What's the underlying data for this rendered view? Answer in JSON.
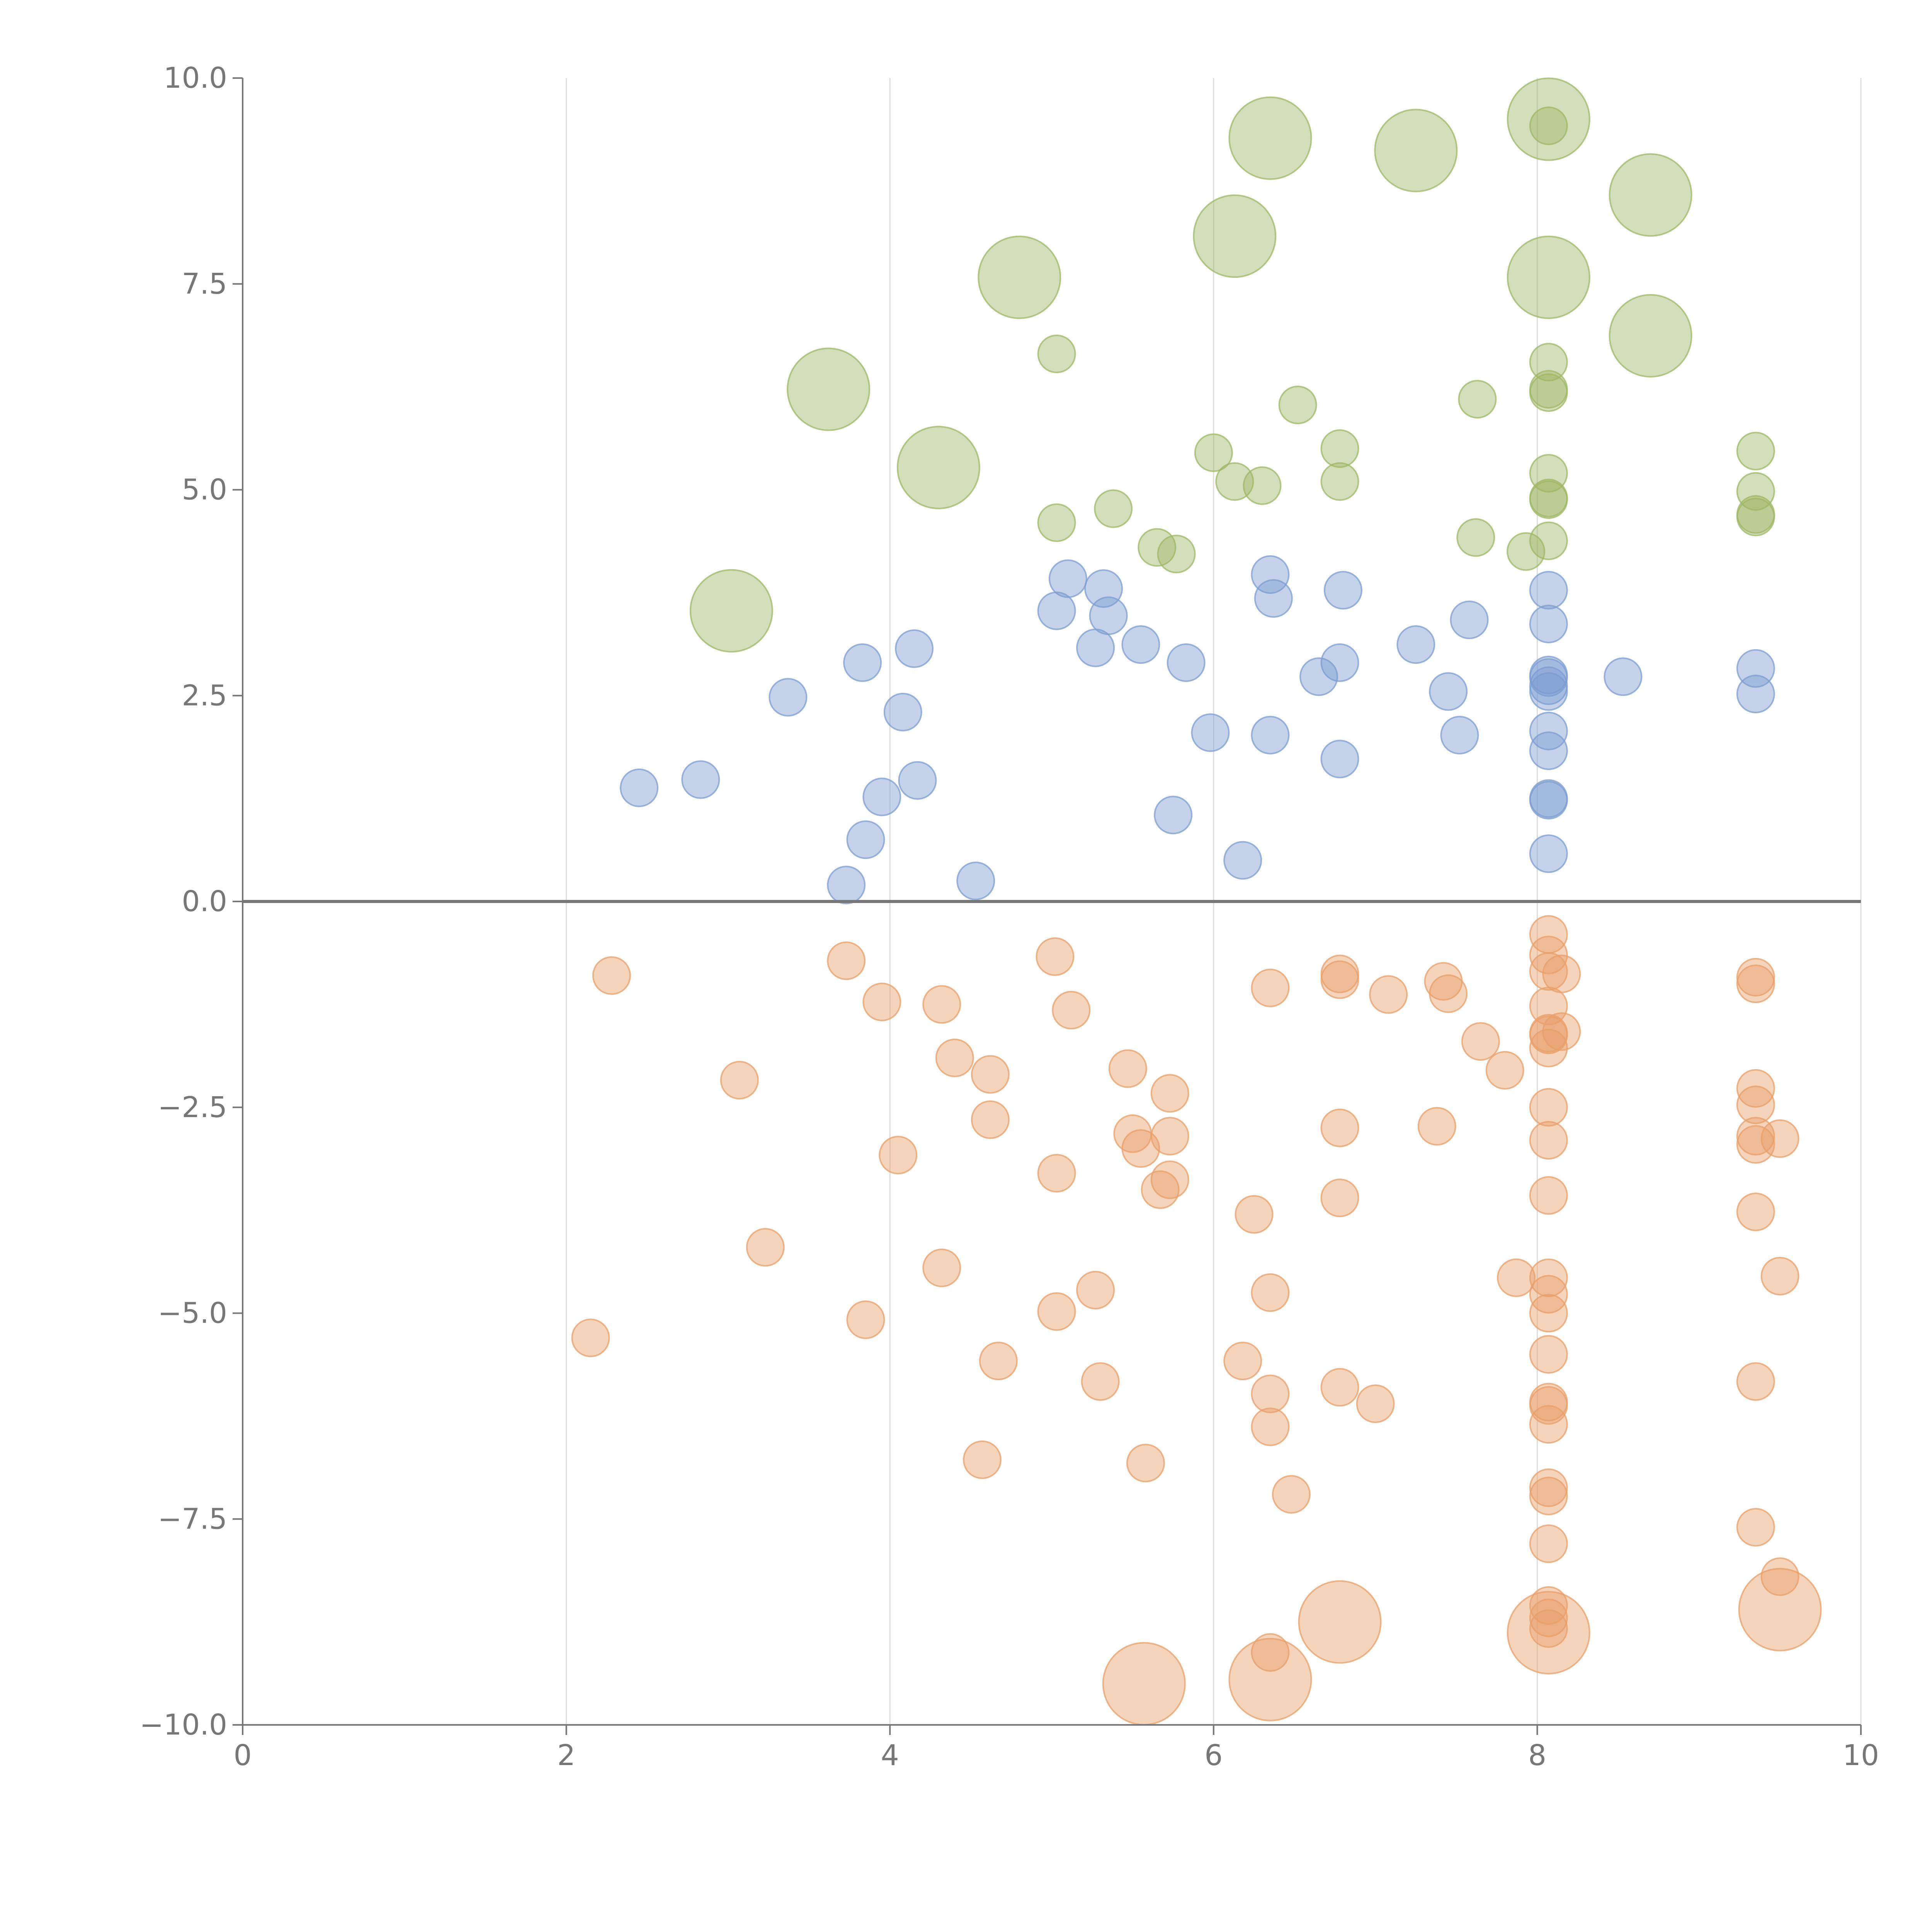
{
  "chart_data": {
    "type": "scatter",
    "title": "",
    "xlabel": "",
    "ylabel": "",
    "xlim": [
      0,
      10
    ],
    "ylim": [
      -10,
      10
    ],
    "x_ticks": [
      0,
      2,
      4,
      6,
      8,
      10
    ],
    "x_tick_labels": [
      "0",
      "2",
      "4",
      "6",
      "8",
      "10"
    ],
    "y_ticks": [
      10,
      7.5,
      5,
      2.5,
      0,
      -2.5,
      -5,
      -7.5,
      -10
    ],
    "y_tick_labels": [
      "10.0",
      "7.5",
      "5.0",
      "2.5",
      "0.0",
      "−2.5",
      "−5.0",
      "−7.5",
      "−10.0"
    ],
    "vertical_grid": true,
    "horizontal_grid": false,
    "zero_line": true,
    "legend": "none",
    "series": [
      {
        "color": "#9db865",
        "points": [
          [
            6.35,
            9.27,
            1
          ],
          [
            7.25,
            9.12,
            1
          ],
          [
            8.07,
            9.5,
            1
          ],
          [
            8.07,
            9.42,
            0
          ],
          [
            8.7,
            8.58,
            1
          ],
          [
            6.13,
            8.08,
            1
          ],
          [
            4.8,
            7.58,
            1
          ],
          [
            8.07,
            7.58,
            1
          ],
          [
            8.7,
            6.87,
            1
          ],
          [
            3.62,
            6.22,
            1
          ],
          [
            4.3,
            5.27,
            1
          ],
          [
            3.02,
            3.53,
            1
          ],
          [
            5.03,
            6.65,
            0
          ],
          [
            8.07,
            6.55,
            0
          ],
          [
            6.52,
            6.03,
            0
          ],
          [
            7.63,
            6.1,
            0
          ],
          [
            8.07,
            6.22,
            0
          ],
          [
            8.07,
            6.18,
            0
          ],
          [
            6.78,
            5.5,
            0
          ],
          [
            6.0,
            5.45,
            0
          ],
          [
            9.35,
            5.47,
            0
          ],
          [
            6.13,
            5.1,
            0
          ],
          [
            6.3,
            5.05,
            0
          ],
          [
            6.78,
            5.1,
            0
          ],
          [
            8.07,
            5.2,
            0
          ],
          [
            9.35,
            4.98,
            0
          ],
          [
            8.07,
            4.88,
            0
          ],
          [
            8.07,
            4.9,
            0
          ],
          [
            5.38,
            4.77,
            0
          ],
          [
            9.35,
            4.7,
            0
          ],
          [
            9.35,
            4.67,
            0
          ],
          [
            5.03,
            4.6,
            0
          ],
          [
            5.65,
            4.3,
            0
          ],
          [
            5.77,
            4.22,
            0
          ],
          [
            7.62,
            4.42,
            0
          ],
          [
            8.07,
            4.38,
            0
          ],
          [
            7.93,
            4.25,
            0
          ]
        ]
      },
      {
        "color": "#7d9ed0",
        "points": [
          [
            5.1,
            3.92,
            0
          ],
          [
            6.35,
            3.97,
            0
          ],
          [
            6.37,
            3.68,
            0
          ],
          [
            6.8,
            3.78,
            0
          ],
          [
            8.07,
            3.78,
            0
          ],
          [
            5.32,
            3.8,
            0
          ],
          [
            5.03,
            3.53,
            0
          ],
          [
            5.35,
            3.47,
            0
          ],
          [
            7.58,
            3.42,
            0
          ],
          [
            8.07,
            3.37,
            0
          ],
          [
            4.15,
            3.07,
            0
          ],
          [
            5.27,
            3.08,
            0
          ],
          [
            5.55,
            3.12,
            0
          ],
          [
            7.25,
            3.12,
            0
          ],
          [
            3.83,
            2.9,
            0
          ],
          [
            5.83,
            2.9,
            0
          ],
          [
            6.78,
            2.9,
            0
          ],
          [
            9.35,
            2.83,
            0
          ],
          [
            6.65,
            2.73,
            0
          ],
          [
            8.53,
            2.73,
            0
          ],
          [
            8.07,
            2.75,
            0
          ],
          [
            8.07,
            2.72,
            0
          ],
          [
            8.07,
            2.62,
            0
          ],
          [
            8.07,
            2.55,
            0
          ],
          [
            3.37,
            2.48,
            0
          ],
          [
            7.45,
            2.55,
            0
          ],
          [
            9.35,
            2.52,
            0
          ],
          [
            4.08,
            2.3,
            0
          ],
          [
            8.07,
            2.07,
            0
          ],
          [
            5.98,
            2.05,
            0
          ],
          [
            6.35,
            2.02,
            0
          ],
          [
            7.52,
            2.02,
            0
          ],
          [
            8.07,
            1.83,
            0
          ],
          [
            6.78,
            1.73,
            0
          ],
          [
            2.83,
            1.48,
            0
          ],
          [
            4.17,
            1.47,
            0
          ],
          [
            2.45,
            1.38,
            0
          ],
          [
            3.95,
            1.27,
            0
          ],
          [
            8.07,
            1.25,
            0
          ],
          [
            8.07,
            1.23,
            0
          ],
          [
            5.75,
            1.05,
            0
          ],
          [
            3.85,
            0.75,
            0
          ],
          [
            8.07,
            0.58,
            0
          ],
          [
            6.18,
            0.5,
            0
          ],
          [
            3.73,
            0.2,
            0
          ],
          [
            4.53,
            0.25,
            0
          ]
        ]
      },
      {
        "color": "#e8a06a",
        "points": [
          [
            8.07,
            -0.4,
            0
          ],
          [
            8.07,
            -0.65,
            0
          ],
          [
            6.78,
            -0.88,
            0
          ],
          [
            6.78,
            -0.95,
            0
          ],
          [
            8.07,
            -0.85,
            0
          ],
          [
            8.15,
            -0.88,
            0
          ],
          [
            9.35,
            -0.92,
            0
          ],
          [
            9.35,
            -1.0,
            0
          ],
          [
            2.28,
            -0.9,
            0
          ],
          [
            3.73,
            -0.72,
            0
          ],
          [
            5.02,
            -0.67,
            0
          ],
          [
            6.35,
            -1.05,
            0
          ],
          [
            7.08,
            -1.13,
            0
          ],
          [
            7.42,
            -0.97,
            0
          ],
          [
            7.45,
            -1.12,
            0
          ],
          [
            3.95,
            -1.22,
            0
          ],
          [
            4.32,
            -1.25,
            0
          ],
          [
            5.12,
            -1.32,
            0
          ],
          [
            8.07,
            -1.27,
            0
          ],
          [
            8.07,
            -1.6,
            0
          ],
          [
            8.07,
            -1.62,
            0
          ],
          [
            8.15,
            -1.58,
            0
          ],
          [
            8.07,
            -1.78,
            0
          ],
          [
            7.65,
            -1.7,
            0
          ],
          [
            4.4,
            -1.9,
            0
          ],
          [
            4.62,
            -2.1,
            0
          ],
          [
            5.47,
            -2.03,
            0
          ],
          [
            7.8,
            -2.05,
            0
          ],
          [
            3.07,
            -2.17,
            0
          ],
          [
            5.73,
            -2.33,
            0
          ],
          [
            9.35,
            -2.27,
            0
          ],
          [
            8.07,
            -2.5,
            0
          ],
          [
            9.35,
            -2.47,
            0
          ],
          [
            4.62,
            -2.65,
            0
          ],
          [
            6.78,
            -2.75,
            0
          ],
          [
            7.38,
            -2.73,
            0
          ],
          [
            5.5,
            -2.82,
            0
          ],
          [
            5.73,
            -2.85,
            0
          ],
          [
            8.07,
            -2.9,
            0
          ],
          [
            9.35,
            -2.85,
            0
          ],
          [
            9.35,
            -2.95,
            0
          ],
          [
            9.5,
            -2.88,
            0
          ],
          [
            5.55,
            -3.0,
            0
          ],
          [
            4.05,
            -3.08,
            0
          ],
          [
            5.03,
            -3.3,
            0
          ],
          [
            5.73,
            -3.38,
            0
          ],
          [
            5.67,
            -3.5,
            0
          ],
          [
            8.07,
            -3.57,
            0
          ],
          [
            6.78,
            -3.6,
            0
          ],
          [
            9.35,
            -3.77,
            0
          ],
          [
            6.25,
            -3.8,
            0
          ],
          [
            3.23,
            -4.2,
            0
          ],
          [
            4.32,
            -4.45,
            0
          ],
          [
            7.87,
            -4.57,
            0
          ],
          [
            8.07,
            -4.57,
            0
          ],
          [
            9.5,
            -4.55,
            0
          ],
          [
            5.27,
            -4.72,
            0
          ],
          [
            6.35,
            -4.75,
            0
          ],
          [
            8.07,
            -4.77,
            0
          ],
          [
            8.07,
            -5.0,
            0
          ],
          [
            5.03,
            -4.98,
            0
          ],
          [
            3.85,
            -5.08,
            0
          ],
          [
            2.15,
            -5.3,
            0
          ],
          [
            8.07,
            -5.5,
            0
          ],
          [
            4.67,
            -5.58,
            0
          ],
          [
            6.18,
            -5.58,
            0
          ],
          [
            5.3,
            -5.83,
            0
          ],
          [
            9.35,
            -5.83,
            0
          ],
          [
            6.78,
            -5.9,
            0
          ],
          [
            6.35,
            -5.98,
            0
          ],
          [
            7.0,
            -6.1,
            0
          ],
          [
            8.07,
            -6.08,
            0
          ],
          [
            8.07,
            -6.12,
            0
          ],
          [
            8.07,
            -6.35,
            0
          ],
          [
            6.35,
            -6.38,
            0
          ],
          [
            4.57,
            -6.78,
            0
          ],
          [
            5.58,
            -6.82,
            0
          ],
          [
            8.07,
            -7.12,
            0
          ],
          [
            8.07,
            -7.22,
            0
          ],
          [
            6.48,
            -7.2,
            0
          ],
          [
            9.35,
            -7.6,
            0
          ],
          [
            8.07,
            -7.8,
            0
          ],
          [
            9.5,
            -8.2,
            0
          ],
          [
            8.07,
            -8.55,
            0
          ],
          [
            8.07,
            -8.7,
            0
          ],
          [
            8.07,
            -8.83,
            0
          ],
          [
            6.35,
            -9.12,
            0
          ],
          [
            6.78,
            -8.75,
            1
          ],
          [
            8.07,
            -8.88,
            1
          ],
          [
            9.5,
            -8.6,
            1
          ],
          [
            5.57,
            -9.5,
            1
          ],
          [
            6.35,
            -9.45,
            1
          ]
        ]
      }
    ]
  }
}
